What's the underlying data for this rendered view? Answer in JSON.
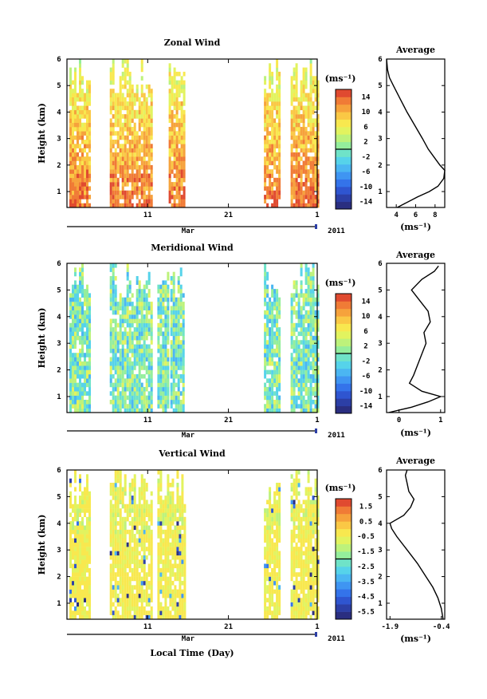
{
  "figure": {
    "xlabel": "Local Time (Day)",
    "month_label": "Mar",
    "year_label": "2011",
    "x_ticks": [
      "11",
      "21",
      "1"
    ],
    "units": "(ms⁻¹)"
  },
  "chart_data": [
    {
      "type": "heatmap",
      "title": "Zonal Wind",
      "ylabel": "Height (km)",
      "y_ticks": [
        1,
        2,
        3,
        4,
        5,
        6
      ],
      "ylim": [
        0.4,
        6
      ],
      "x_days_range": [
        1,
        32
      ],
      "data_segments_days": [
        [
          1.3,
          3.8
        ],
        [
          6.3,
          11.6
        ],
        [
          13.6,
          15.5
        ],
        [
          25.4,
          27.4
        ],
        [
          28.7,
          32.0
        ]
      ],
      "colorbar": {
        "ticks": [
          14,
          10,
          6,
          2,
          -2,
          -6,
          -10,
          -14
        ],
        "range": [
          -16,
          16
        ],
        "label": "(ms⁻¹)"
      },
      "typical_value_range": [
        6,
        14
      ],
      "average_profile": {
        "title": "Average",
        "xlabel": "(ms⁻¹)",
        "x_ticks": [
          4,
          6,
          8
        ],
        "xlim": [
          3,
          9
        ],
        "height_km": [
          0.4,
          0.8,
          1.0,
          1.2,
          1.5,
          1.8,
          2.0,
          2.3,
          2.6,
          3.0,
          3.5,
          4.0,
          4.5,
          5.0,
          5.3,
          5.6,
          6.0
        ],
        "value": [
          4.1,
          6.2,
          7.4,
          8.3,
          8.9,
          9.0,
          8.5,
          7.9,
          7.3,
          6.7,
          5.9,
          5.1,
          4.4,
          3.7,
          3.3,
          3.1,
          3.0
        ]
      }
    },
    {
      "type": "heatmap",
      "title": "Meridional Wind",
      "ylabel": "Height (km)",
      "y_ticks": [
        1,
        2,
        3,
        4,
        5,
        6
      ],
      "ylim": [
        0.4,
        6
      ],
      "x_days_range": [
        1,
        32
      ],
      "data_segments_days": [
        [
          1.3,
          3.8
        ],
        [
          6.3,
          11.6
        ],
        [
          12.2,
          13.6
        ],
        [
          13.8,
          15.5
        ],
        [
          25.4,
          27.4
        ],
        [
          28.7,
          32.0
        ]
      ],
      "colorbar": {
        "ticks": [
          14,
          10,
          6,
          2,
          -2,
          -6,
          -10,
          -14
        ],
        "range": [
          -16,
          16
        ],
        "label": "(ms⁻¹)"
      },
      "typical_value_range": [
        -4,
        4
      ],
      "average_profile": {
        "title": "Average",
        "xlabel": "(ms⁻¹)",
        "x_ticks": [
          0,
          1
        ],
        "xlim": [
          -0.3,
          1.1
        ],
        "height_km": [
          0.4,
          0.6,
          0.8,
          1.0,
          1.2,
          1.5,
          1.8,
          2.2,
          2.6,
          3.0,
          3.4,
          3.8,
          4.2,
          4.6,
          5.0,
          5.4,
          5.7,
          5.9
        ],
        "value": [
          -0.25,
          0.3,
          0.7,
          1.0,
          0.55,
          0.25,
          0.35,
          0.45,
          0.55,
          0.65,
          0.6,
          0.75,
          0.7,
          0.5,
          0.3,
          0.55,
          0.85,
          0.95
        ]
      }
    },
    {
      "type": "heatmap",
      "title": "Vertical Wind",
      "ylabel": "Height (km)",
      "y_ticks": [
        1,
        2,
        3,
        4,
        5,
        6
      ],
      "ylim": [
        0.4,
        6
      ],
      "x_days_range": [
        1,
        32
      ],
      "data_segments_days": [
        [
          1.3,
          3.8
        ],
        [
          6.3,
          11.6
        ],
        [
          12.2,
          15.5
        ],
        [
          25.4,
          27.4
        ],
        [
          28.7,
          32.0
        ]
      ],
      "colorbar": {
        "ticks": [
          1.5,
          0.5,
          -0.5,
          -1.5,
          -2.5,
          -3.5,
          -4.5,
          -5.5
        ],
        "range": [
          -6,
          2
        ],
        "label": "(ms⁻¹)"
      },
      "typical_value_range": [
        -1.5,
        0.5
      ],
      "average_profile": {
        "title": "Average",
        "xlabel": "(ms⁻¹)",
        "x_ticks": [
          -1.9,
          -0.4
        ],
        "xlim": [
          -2.0,
          -0.3
        ],
        "height_km": [
          0.4,
          0.8,
          1.2,
          1.6,
          2.0,
          2.5,
          3.0,
          3.5,
          3.8,
          4.0,
          4.3,
          4.6,
          4.9,
          5.2,
          5.5,
          5.8,
          6.0
        ],
        "value": [
          -0.35,
          -0.4,
          -0.5,
          -0.65,
          -0.85,
          -1.1,
          -1.4,
          -1.7,
          -1.85,
          -1.9,
          -1.5,
          -1.3,
          -1.2,
          -1.35,
          -1.4,
          -1.45,
          -1.4
        ]
      }
    }
  ]
}
